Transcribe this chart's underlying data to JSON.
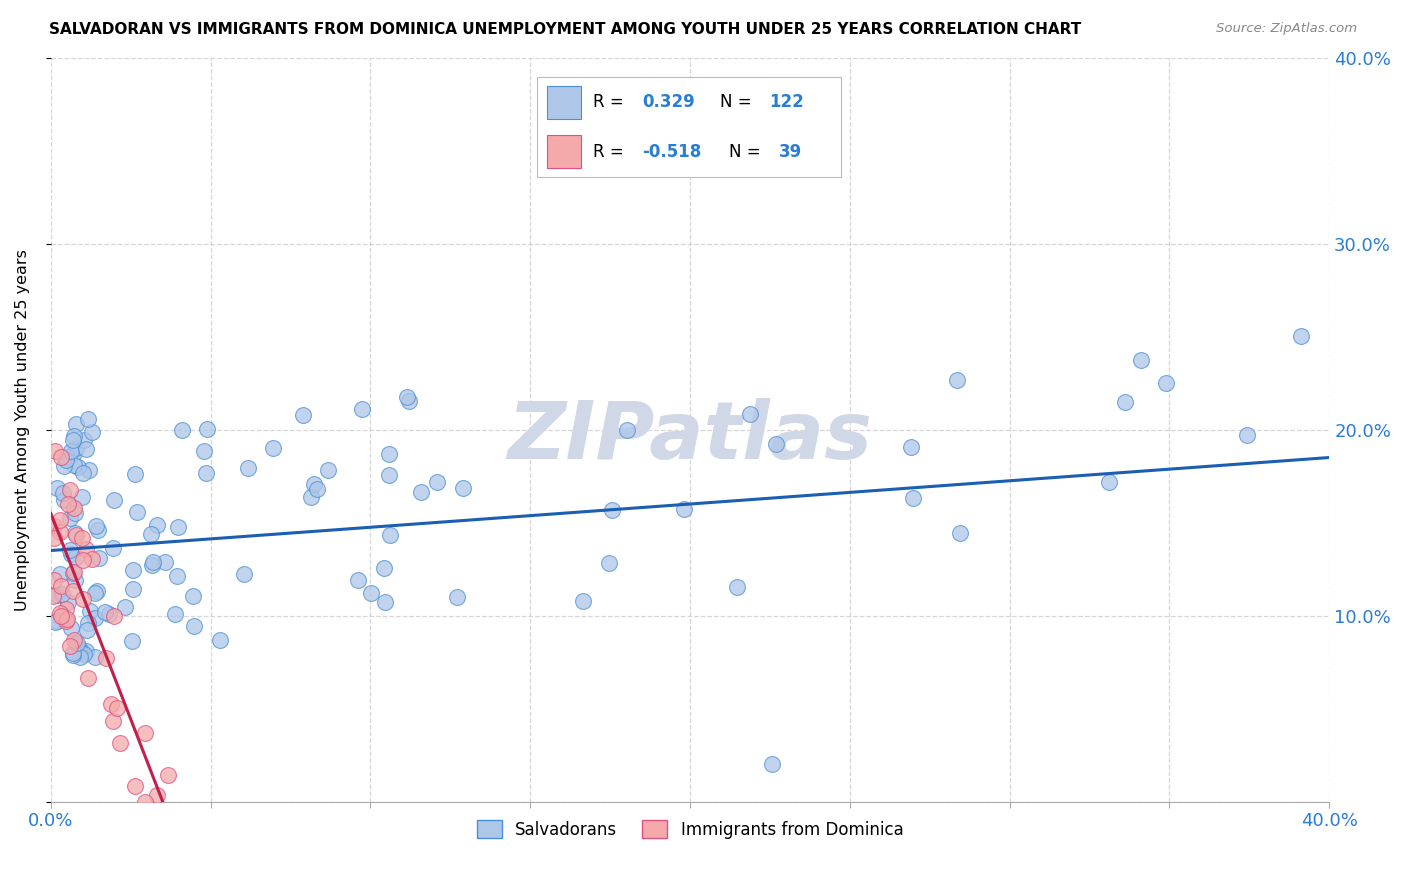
{
  "title": "SALVADORAN VS IMMIGRANTS FROM DOMINICA UNEMPLOYMENT AMONG YOUTH UNDER 25 YEARS CORRELATION CHART",
  "source": "Source: ZipAtlas.com",
  "ylabel": "Unemployment Among Youth under 25 years",
  "legend_salvadoran": "Salvadorans",
  "legend_dominica": "Immigrants from Dominica",
  "r_salvadoran": "0.329",
  "n_salvadoran": "122",
  "r_dominica": "-0.518",
  "n_dominica": "39",
  "color_salvadoran_fill": "#aec6e8",
  "color_salvadoran_edge": "#4a90d9",
  "color_dominica_fill": "#f4aaaa",
  "color_dominica_edge": "#e05080",
  "color_line_salvadoran": "#1a5fb4",
  "color_line_dominica": "#c0204a",
  "color_r_value": "#2a7dd4",
  "color_n_value": "#2a7dd4",
  "watermark_text": "ZIPatlas",
  "watermark_color": "#d0d8e8",
  "background_color": "#ffffff",
  "xlim": [
    0.0,
    0.4
  ],
  "ylim": [
    0.0,
    0.4
  ],
  "xtick_positions": [
    0.0,
    0.05,
    0.1,
    0.15,
    0.2,
    0.25,
    0.3,
    0.35,
    0.4
  ],
  "ytick_positions": [
    0.0,
    0.1,
    0.2,
    0.3,
    0.4
  ],
  "salv_trend_x": [
    0.0,
    0.4
  ],
  "salv_trend_y": [
    0.135,
    0.185
  ],
  "dom_trend_x": [
    0.0,
    0.035
  ],
  "dom_trend_y": [
    0.155,
    0.0
  ]
}
